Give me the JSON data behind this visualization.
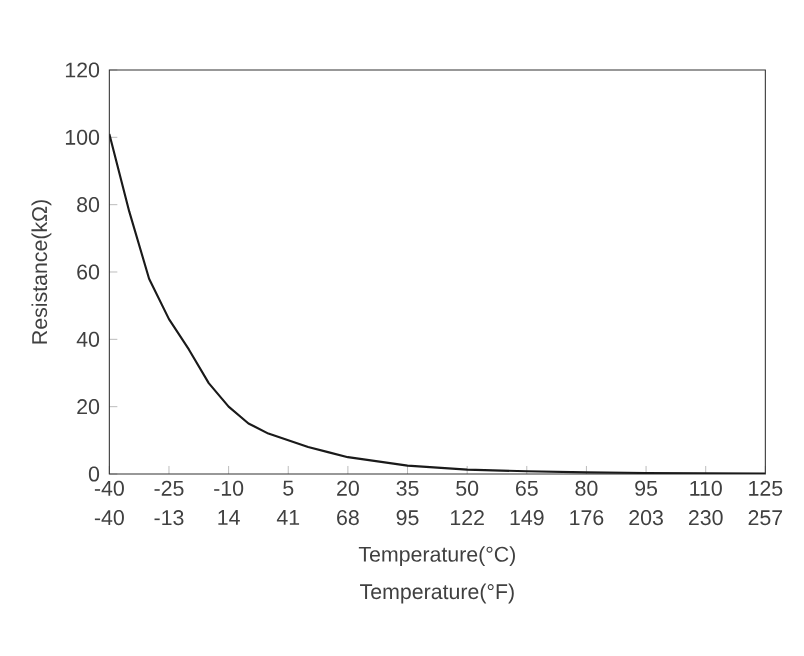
{
  "chart_data": {
    "type": "line",
    "x": [
      -40,
      -35,
      -30,
      -25,
      -20,
      -15,
      -10,
      -5,
      0,
      5,
      10,
      15,
      20,
      35,
      50,
      65,
      80,
      95,
      110,
      125
    ],
    "values": [
      101,
      78,
      58,
      46,
      37,
      27,
      20,
      15,
      12,
      10,
      8,
      6.5,
      5,
      2.5,
      1.3,
      0.8,
      0.5,
      0.3,
      0.2,
      0.1
    ],
    "color": "#1a1a1a",
    "xlim": [
      -40,
      125
    ],
    "xticks": [
      -40,
      -25,
      -10,
      5,
      20,
      35,
      50,
      65,
      80,
      95,
      110,
      125
    ],
    "ylim": [
      0,
      120
    ],
    "yticks": [
      0,
      20,
      40,
      60,
      80,
      100,
      120
    ],
    "x2lim": [
      -40,
      257
    ],
    "x2ticks": [
      -40,
      -13,
      14,
      41,
      68,
      95,
      122,
      149,
      176,
      203,
      230,
      257
    ],
    "xlabel": "Temperature(°C)",
    "x2label": "Temperature(°F)",
    "ylabel": "Resistance(kΩ)",
    "grid": false
  }
}
